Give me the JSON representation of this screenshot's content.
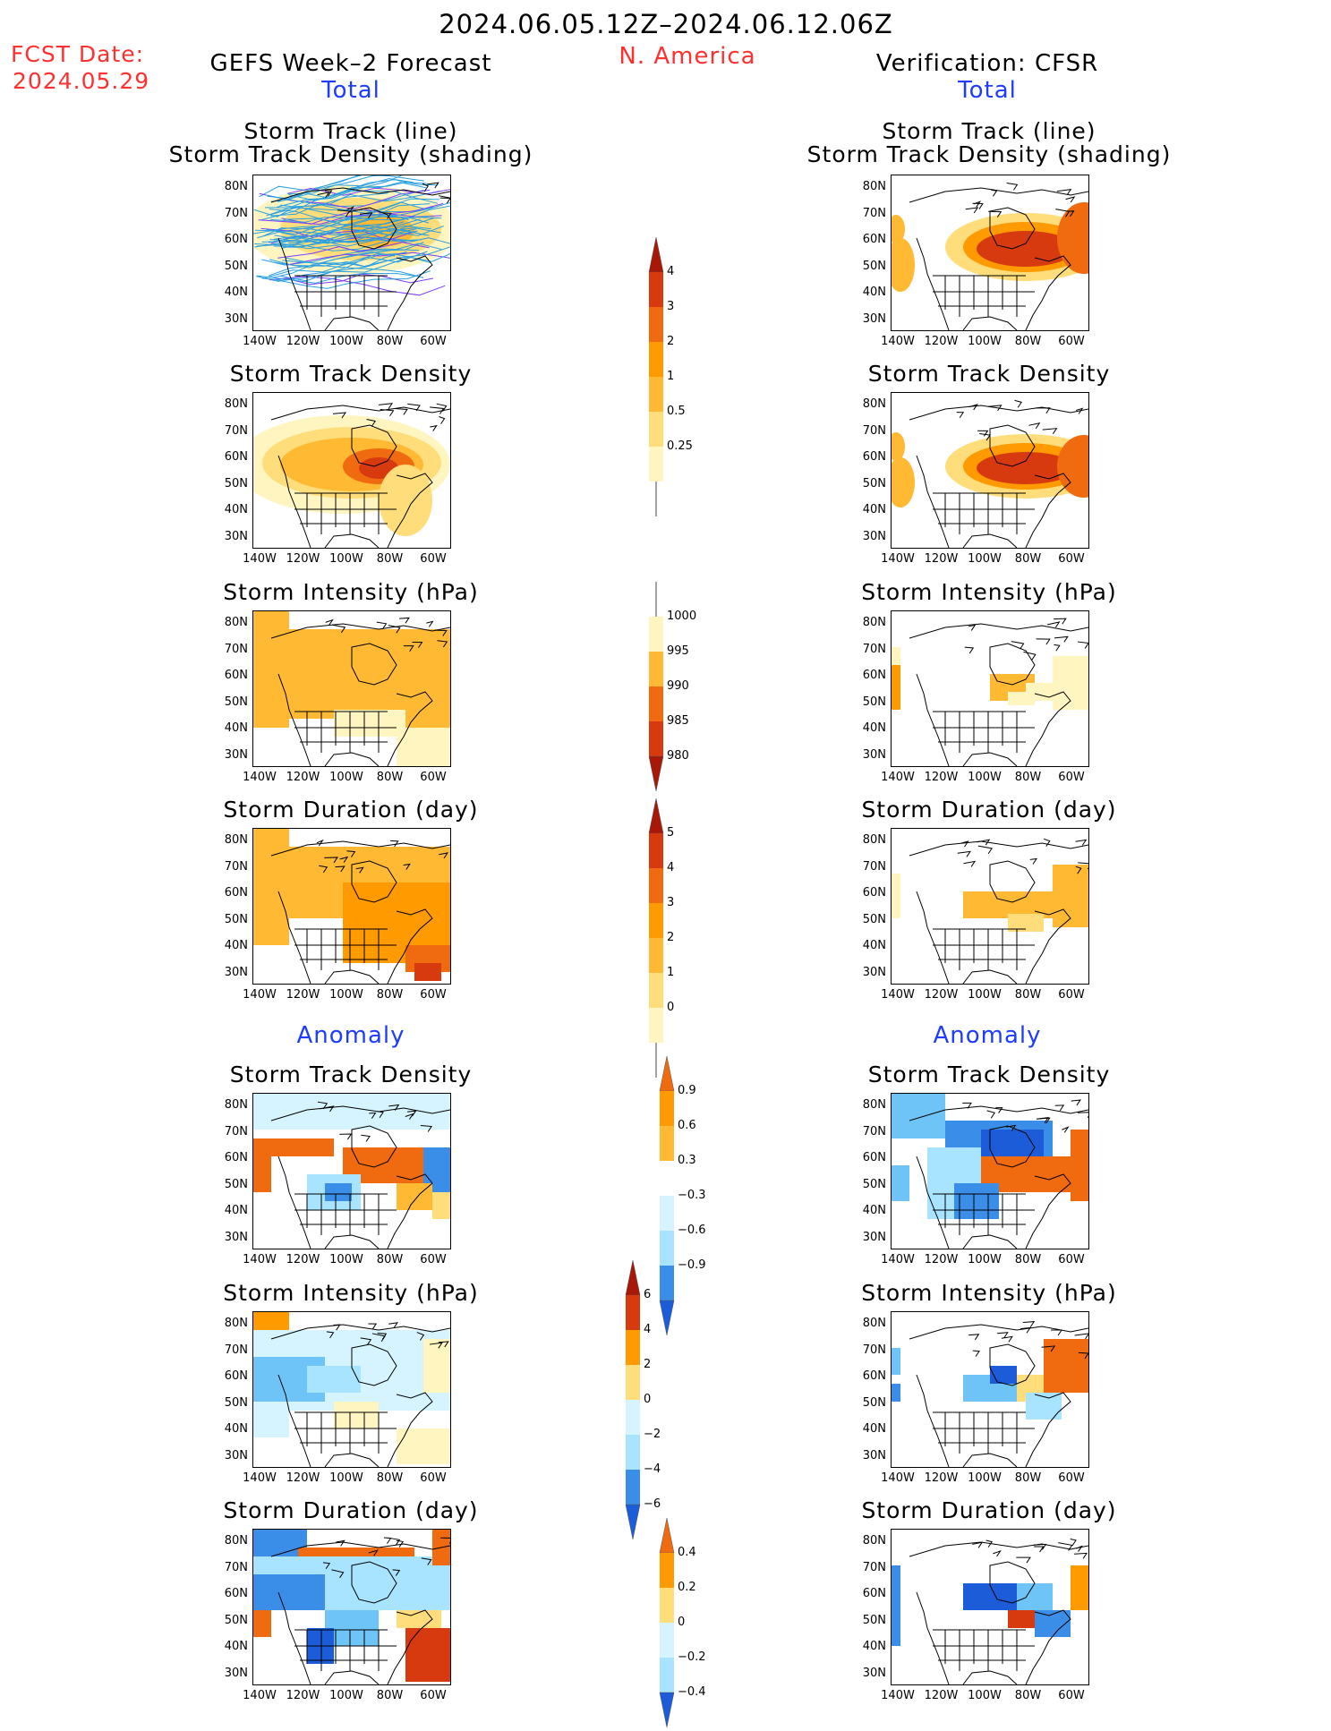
{
  "header": {
    "date_range": "2024.06.05.12Z–2024.06.12.06Z",
    "fcst_label": "FCST Date:",
    "fcst_date": "2024.05.29",
    "left_title": "GEFS Week–2 Forecast",
    "region": "N. America",
    "right_title": "Verification: CFSR",
    "total_label": "Total",
    "anomaly_label": "Anomaly"
  },
  "panel_titles": {
    "track_line": "Storm Track (line)",
    "track_density_shading": "Storm Track Density (shading)",
    "track_density": "Storm Track Density",
    "intensity": "Storm Intensity (hPa)",
    "duration": "Storm Duration (day)"
  },
  "axes": {
    "lat_ticks": [
      "80N",
      "70N",
      "60N",
      "50N",
      "40N",
      "30N"
    ],
    "lon_ticks": [
      "140W",
      "120W",
      "100W",
      "80W",
      "60W"
    ]
  },
  "colorbars": {
    "density_total": [
      "0.25",
      "0.5",
      "1",
      "2",
      "3",
      "4"
    ],
    "intensity_total": [
      "1000",
      "995",
      "990",
      "985",
      "980"
    ],
    "duration_total": [
      "0",
      "1",
      "2",
      "3",
      "4",
      "5"
    ],
    "density_anom": [
      "0.9",
      "0.6",
      "0.3",
      "−0.3",
      "−0.6",
      "−0.9"
    ],
    "intensity_anom": [
      "6",
      "4",
      "2",
      "0",
      "−2",
      "−4",
      "−6"
    ],
    "duration_anom": [
      "0.4",
      "0.2",
      "0",
      "−0.2",
      "−0.4"
    ]
  },
  "colors": {
    "warm": [
      "#fff5c0",
      "#ffdd7a",
      "#ffb933",
      "#ff9a00",
      "#f06a10",
      "#d83a10",
      "#a81808"
    ],
    "cool": [
      "#d6f4ff",
      "#a8e4ff",
      "#6ec4f6",
      "#3a8ee8",
      "#1c5cd8"
    ],
    "text_red": "#ff3030",
    "text_blue": "#1e3cff"
  }
}
